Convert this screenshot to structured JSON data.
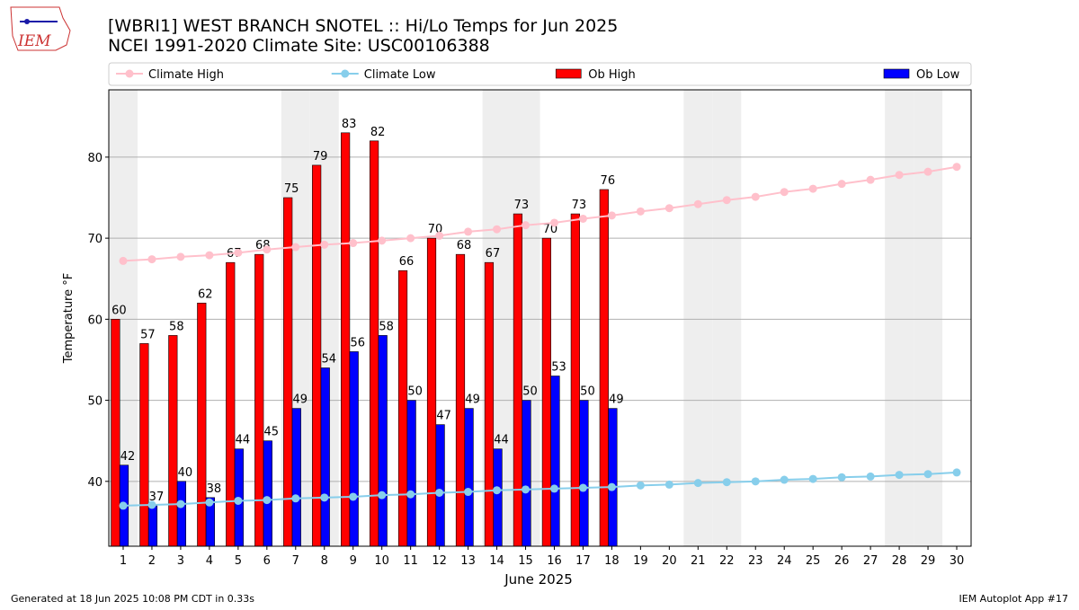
{
  "logo": "IEM",
  "chart_data": {
    "type": "bar",
    "title": "[WBRI1] WEST BRANCH SNOTEL :: Hi/Lo Temps for Jun 2025",
    "subtitle": "NCEI 1991-2020 Climate Site: USC00106388",
    "x_label": "June 2025",
    "y_label": "Temperature °F",
    "x": [
      1,
      2,
      3,
      4,
      5,
      6,
      7,
      8,
      9,
      10,
      11,
      12,
      13,
      14,
      15,
      16,
      17,
      18,
      19,
      20,
      21,
      22,
      23,
      24,
      25,
      26,
      27,
      28,
      29,
      30
    ],
    "xlim": [
      0.5,
      30.5
    ],
    "ylim": [
      32,
      88.3
    ],
    "yticks": [
      40,
      50,
      60,
      70,
      80
    ],
    "grid": true,
    "legend": "top",
    "shaded_days": [
      1,
      7,
      8,
      14,
      15,
      21,
      22,
      28,
      29
    ],
    "shade_color": "#eeeeee",
    "series": [
      {
        "name": "Climate High",
        "type": "line",
        "color": "#ffc0cb",
        "values": [
          67.2,
          67.4,
          67.7,
          67.9,
          68.2,
          68.6,
          68.9,
          69.2,
          69.4,
          69.7,
          70.0,
          70.3,
          70.8,
          71.1,
          71.6,
          71.9,
          72.4,
          72.8,
          73.3,
          73.7,
          74.2,
          74.7,
          75.1,
          75.7,
          76.1,
          76.7,
          77.2,
          77.8,
          78.2,
          78.8
        ]
      },
      {
        "name": "Climate Low",
        "type": "line",
        "color": "#87ceeb",
        "values": [
          37.0,
          37.1,
          37.2,
          37.4,
          37.6,
          37.7,
          37.9,
          38.0,
          38.1,
          38.3,
          38.4,
          38.6,
          38.7,
          38.9,
          39.0,
          39.1,
          39.2,
          39.3,
          39.5,
          39.6,
          39.8,
          39.9,
          40.0,
          40.2,
          40.3,
          40.5,
          40.6,
          40.8,
          40.9,
          41.1
        ]
      },
      {
        "name": "Ob High",
        "type": "bar",
        "color": "#ff0000",
        "values": [
          60,
          57,
          58,
          62,
          67,
          68,
          75,
          79,
          83,
          82,
          66,
          70,
          68,
          67,
          73,
          70,
          73,
          76,
          null,
          null,
          null,
          null,
          null,
          null,
          null,
          null,
          null,
          null,
          null,
          null
        ]
      },
      {
        "name": "Ob Low",
        "type": "bar",
        "color": "#0000ff",
        "values": [
          42,
          37,
          40,
          38,
          44,
          45,
          49,
          54,
          56,
          58,
          50,
          47,
          49,
          44,
          50,
          53,
          50,
          49,
          null,
          null,
          null,
          null,
          null,
          null,
          null,
          null,
          null,
          null,
          null,
          null
        ]
      }
    ]
  },
  "footer": {
    "left": "Generated at 18 Jun 2025 10:08 PM CDT in 0.33s",
    "right": "IEM Autoplot App #17"
  }
}
